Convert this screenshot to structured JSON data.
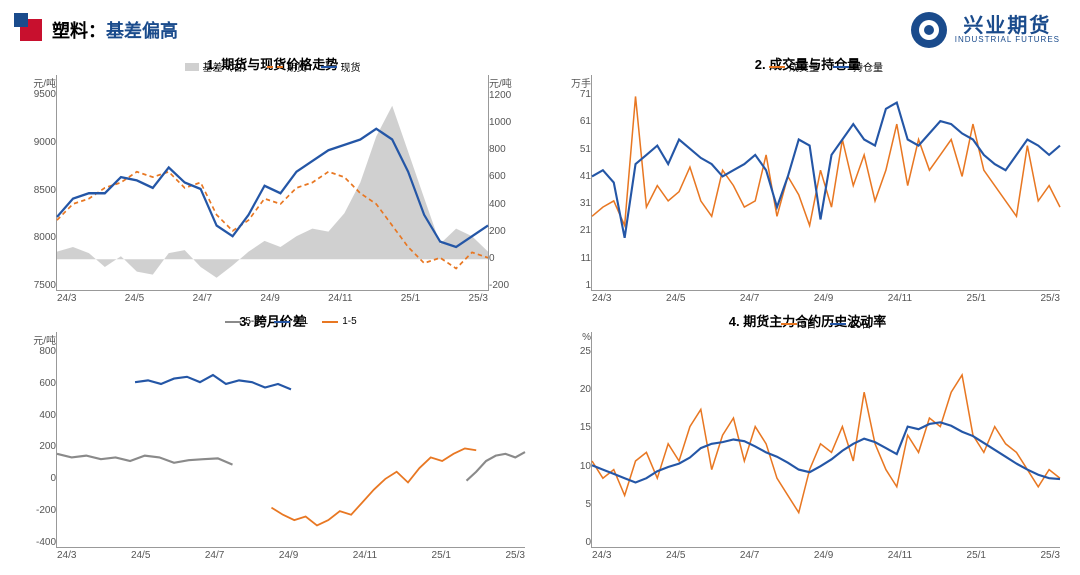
{
  "header": {
    "title_prefix": "塑料：",
    "title_accent": "基差偏高",
    "logo_cn": "兴业期货",
    "logo_en": "INDUSTRIAL FUTURES"
  },
  "shared_x": {
    "ticks": [
      "24/3",
      "24/5",
      "24/7",
      "24/9",
      "24/11",
      "25/1",
      "25/3"
    ],
    "min": 0,
    "max": 240
  },
  "colors": {
    "blue": "#2456a6",
    "orange": "#e87722",
    "gray_fill": "#d0d0d0",
    "gray_line": "#8a8a8a",
    "axis": "#999"
  },
  "chart1": {
    "title": "1. 期货与现货价格走势",
    "y_unit": "元/吨",
    "y2_unit": "元/吨",
    "y_min": 7500,
    "y_max": 9500,
    "y_step": 500,
    "y_ticks": [
      "9500",
      "9000",
      "8500",
      "8000",
      "7500"
    ],
    "y2_min": -200,
    "y2_max": 1200,
    "y2_step": 200,
    "y2_ticks": [
      "1200",
      "1000",
      "800",
      "600",
      "400",
      "200",
      "0",
      "-200"
    ],
    "legend": [
      {
        "label": "基差（右）",
        "type": "block",
        "color": "#d0d0d0"
      },
      {
        "label": "期货",
        "type": "dash",
        "color": "#e87722"
      },
      {
        "label": "现货",
        "type": "line",
        "color": "#2456a6"
      }
    ],
    "basis": [
      50,
      80,
      40,
      -50,
      20,
      -80,
      -100,
      40,
      60,
      -50,
      -120,
      -40,
      50,
      120,
      80,
      150,
      200,
      180,
      300,
      500,
      800,
      1000,
      700,
      400,
      100,
      200,
      150,
      50
    ],
    "futures": [
      8150,
      8300,
      8350,
      8450,
      8500,
      8600,
      8550,
      8600,
      8450,
      8500,
      8200,
      8050,
      8150,
      8350,
      8300,
      8450,
      8500,
      8600,
      8550,
      8400,
      8300,
      8100,
      7900,
      7750,
      7800,
      7700,
      7850,
      7800
    ],
    "spot": [
      8180,
      8350,
      8400,
      8400,
      8550,
      8520,
      8450,
      8640,
      8500,
      8440,
      8100,
      8000,
      8200,
      8470,
      8400,
      8600,
      8700,
      8800,
      8850,
      8900,
      9000,
      8900,
      8600,
      8200,
      7950,
      7900,
      8000,
      8100
    ]
  },
  "chart2": {
    "title": "2. 成交量与持仓量",
    "y_unit": "万手",
    "y_min": 1,
    "y_max": 71,
    "y_step": 10,
    "y_ticks": [
      "71",
      "61",
      "51",
      "41",
      "31",
      "21",
      "11",
      "1"
    ],
    "legend": [
      {
        "label": "成交量",
        "type": "line",
        "color": "#e87722"
      },
      {
        "label": "持仓量",
        "type": "line",
        "color": "#2456a6"
      }
    ],
    "volume": [
      25,
      28,
      30,
      22,
      64,
      28,
      35,
      30,
      33,
      41,
      30,
      25,
      40,
      35,
      28,
      30,
      45,
      25,
      38,
      32,
      22,
      40,
      28,
      50,
      35,
      45,
      30,
      40,
      55,
      35,
      50,
      40,
      45,
      50,
      38,
      55,
      40,
      35,
      30,
      25,
      48,
      30,
      35,
      28
    ],
    "oi": [
      38,
      40,
      36,
      18,
      42,
      45,
      48,
      42,
      50,
      47,
      44,
      42,
      38,
      40,
      42,
      45,
      40,
      28,
      38,
      50,
      48,
      24,
      45,
      50,
      55,
      50,
      48,
      60,
      62,
      50,
      48,
      52,
      56,
      55,
      52,
      50,
      45,
      42,
      40,
      45,
      50,
      48,
      45,
      48
    ]
  },
  "chart3": {
    "title": "3. 跨月价差",
    "y_unit": "元/吨",
    "y_min": -400,
    "y_max": 800,
    "y_step": 200,
    "y_ticks": [
      "800",
      "600",
      "400",
      "200",
      "0",
      "-200",
      "-400"
    ],
    "legend": [
      {
        "label": "5-9",
        "type": "line",
        "color": "#8a8a8a"
      },
      {
        "label": "9-1",
        "type": "line",
        "color": "#2456a6"
      },
      {
        "label": "1-5",
        "type": "line",
        "color": "#e87722"
      }
    ],
    "s59_a": {
      "start": 0,
      "end": 90,
      "data": [
        120,
        100,
        110,
        90,
        100,
        80,
        110,
        100,
        70,
        85,
        90,
        95,
        60
      ]
    },
    "s59_b": {
      "start": 210,
      "end": 240,
      "data": [
        -30,
        20,
        80,
        110,
        120,
        100,
        130
      ]
    },
    "s91": {
      "start": 40,
      "end": 120,
      "data": [
        520,
        530,
        510,
        540,
        550,
        520,
        560,
        510,
        530,
        520,
        490,
        510,
        480
      ]
    },
    "s15": {
      "start": 110,
      "end": 215,
      "data": [
        -180,
        -220,
        -250,
        -230,
        -280,
        -250,
        -200,
        -220,
        -150,
        -80,
        -20,
        20,
        -40,
        40,
        100,
        80,
        120,
        150,
        140
      ]
    }
  },
  "chart4": {
    "title": "4. 期货主力合约历史波动率",
    "y_unit": "%",
    "y_min": 0,
    "y_max": 25,
    "y_step": 5,
    "y_ticks": [
      "25",
      "20",
      "15",
      "10",
      "5",
      "0"
    ],
    "legend": [
      {
        "label": "5日",
        "type": "line",
        "color": "#e87722"
      },
      {
        "label": "20日",
        "type": "line",
        "color": "#2456a6"
      }
    ],
    "d5": [
      10,
      8,
      9,
      6,
      10,
      11,
      8,
      12,
      10,
      14,
      16,
      9,
      13,
      15,
      10,
      14,
      12,
      8,
      6,
      4,
      9,
      12,
      11,
      14,
      10,
      18,
      12,
      9,
      7,
      13,
      11,
      15,
      14,
      18,
      20,
      13,
      11,
      14,
      12,
      11,
      9,
      7,
      9,
      8
    ],
    "d20": [
      9.5,
      9,
      8.5,
      8,
      7.5,
      8,
      8.8,
      9.3,
      9.7,
      10.4,
      11.5,
      12,
      12.2,
      12.5,
      12.3,
      11.7,
      11,
      10.5,
      9.8,
      9,
      8.7,
      9.4,
      10.2,
      11.2,
      12,
      12.6,
      12.2,
      11.5,
      10.8,
      14,
      13.7,
      14.3,
      14.5,
      14.1,
      13.4,
      12.9,
      12.1,
      11.3,
      10.5,
      9.7,
      9,
      8.4,
      8,
      7.9
    ]
  }
}
